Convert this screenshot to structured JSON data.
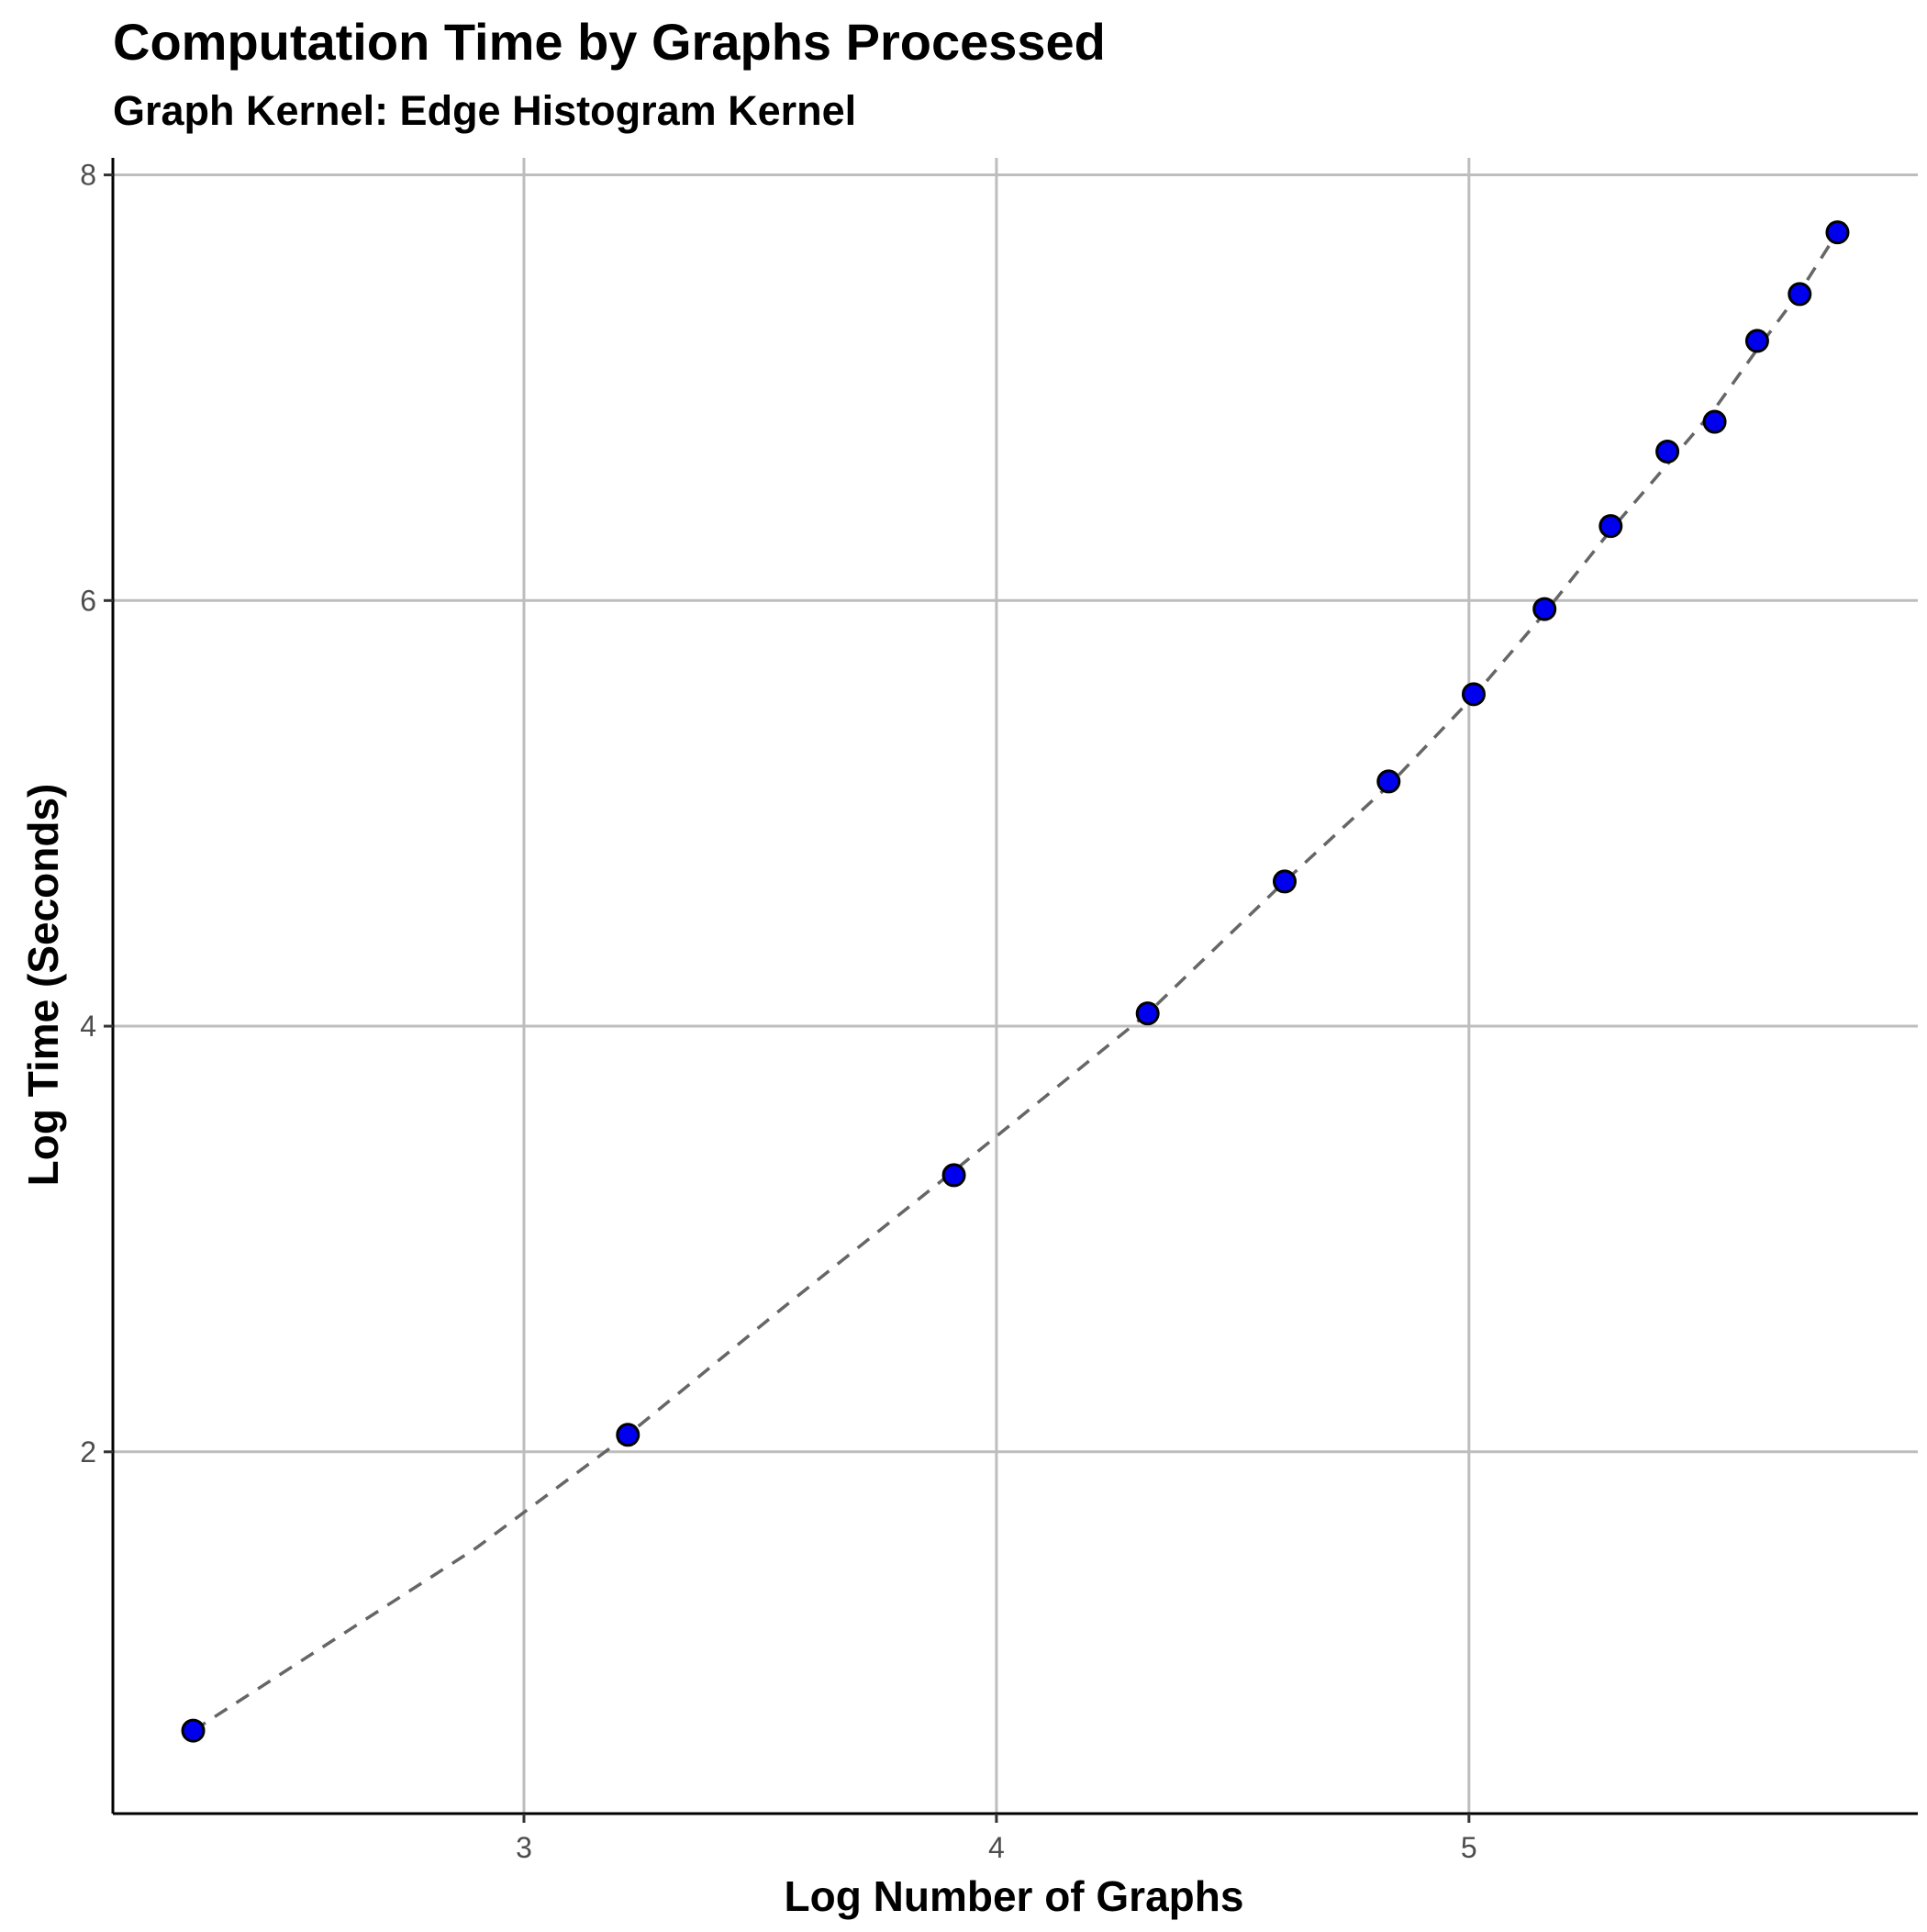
{
  "chart_data": {
    "type": "scatter",
    "title": "Computation Time by Graphs Processed",
    "subtitle": "Graph Kernel: Edge Histogram Kernel",
    "xlabel": "Log Number of Graphs",
    "ylabel": "Log Time (Seconds)",
    "xlim": [
      2.13,
      5.95
    ],
    "ylim": [
      0.3,
      8.08
    ],
    "x_ticks": [
      3,
      4,
      5
    ],
    "y_ticks": [
      2,
      4,
      6,
      8
    ],
    "grid": true,
    "legend": "none",
    "point_color": "#0000ee",
    "line_color": "#666666",
    "series": [
      {
        "x": [
          2.3,
          3.22,
          3.91,
          4.32,
          4.61,
          4.83,
          5.01,
          5.16,
          5.3,
          5.42,
          5.52,
          5.61,
          5.7,
          5.78
        ],
        "y": [
          0.69,
          2.08,
          3.3,
          4.06,
          4.68,
          5.15,
          5.56,
          5.96,
          6.35,
          6.7,
          6.84,
          7.22,
          7.44,
          7.73
        ]
      }
    ],
    "fit_line": {
      "style": "dashed",
      "x": [
        2.3,
        2.6,
        2.9,
        3.22,
        3.55,
        3.91,
        4.32,
        4.61,
        4.83,
        5.01,
        5.16,
        5.3,
        5.42,
        5.52,
        5.61,
        5.7,
        5.78
      ],
      "y": [
        0.69,
        1.12,
        1.55,
        2.08,
        2.68,
        3.32,
        4.06,
        4.68,
        5.13,
        5.55,
        5.94,
        6.33,
        6.64,
        6.9,
        7.18,
        7.45,
        7.73
      ]
    }
  }
}
